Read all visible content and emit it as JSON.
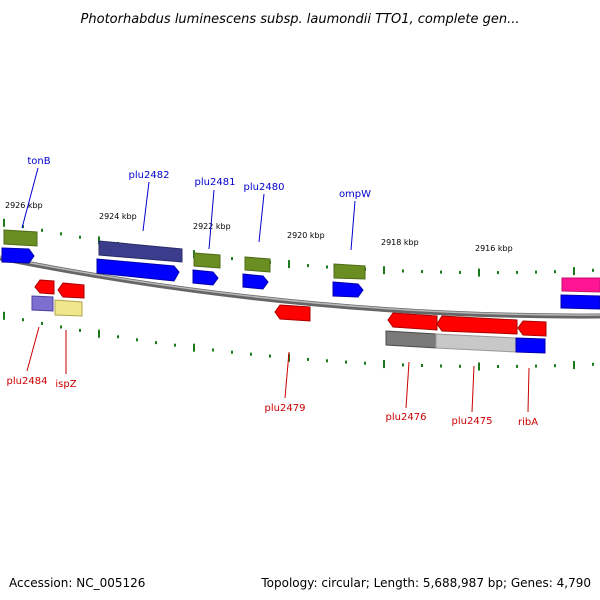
{
  "title": "Photorhabdus luminescens subsp. laumondii TTO1, complete gen...",
  "footer": {
    "accession": "Accession: NC_005126",
    "summary": "Topology: circular; Length: 5,688,987 bp; Genes: 4,790"
  },
  "colors": {
    "backbone": "#888888",
    "tick": "#1a7a1a",
    "label_top": "#0000cc",
    "label_bottom": "#cc0000",
    "olive": "#6b8e23",
    "blue": "#0000ff",
    "navy": "#3c3c8c",
    "red": "#ff0000",
    "lavender": "#7b6fd0",
    "khaki": "#f0e68c",
    "gray": "#7a7a7a",
    "lightgray": "#c8c8c8",
    "magenta": "#ff1493"
  },
  "kbp_marks": [
    {
      "id": "2926",
      "label": "2926 kbp"
    },
    {
      "id": "2924",
      "label": "2924 kbp"
    },
    {
      "id": "2922",
      "label": "2922 kbp"
    },
    {
      "id": "2920",
      "label": "2920 kbp"
    },
    {
      "id": "2918",
      "label": "2918 kbp"
    },
    {
      "id": "2916",
      "label": "2916 kbp"
    }
  ],
  "gene_labels": {
    "top": [
      {
        "id": "tonB",
        "text": "tonB"
      },
      {
        "id": "plu2482",
        "text": "plu2482"
      },
      {
        "id": "plu2481",
        "text": "plu2481"
      },
      {
        "id": "plu2480",
        "text": "plu2480"
      },
      {
        "id": "ompW",
        "text": "ompW"
      }
    ],
    "bottom": [
      {
        "id": "plu2484",
        "text": "plu2484"
      },
      {
        "id": "ispZ",
        "text": "ispZ"
      },
      {
        "id": "plu2479",
        "text": "plu2479"
      },
      {
        "id": "plu2476",
        "text": "plu2476"
      },
      {
        "id": "plu2475",
        "text": "plu2475"
      },
      {
        "id": "ribA",
        "text": "ribA"
      }
    ]
  }
}
